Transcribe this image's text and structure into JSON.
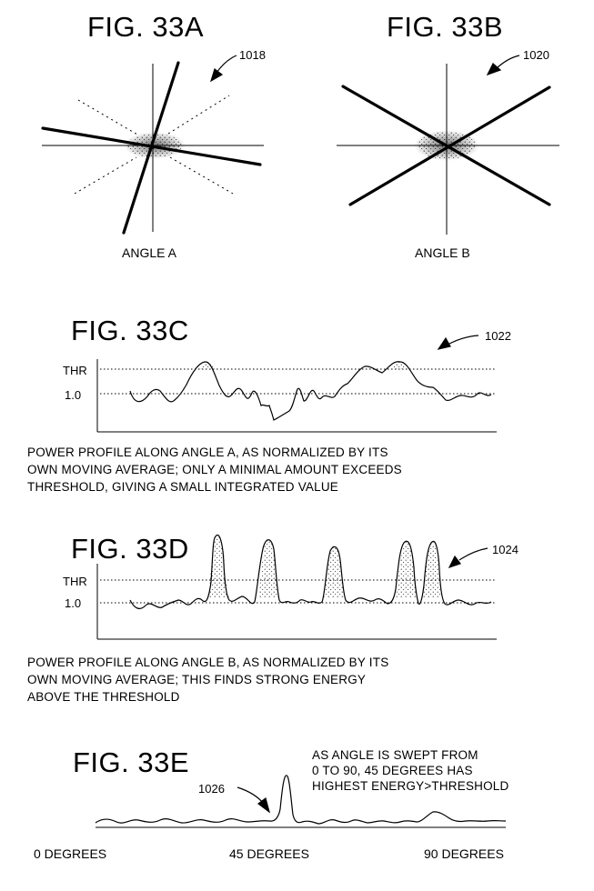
{
  "fig_a": {
    "title": "FIG. 33A",
    "ref": "1018",
    "label": "ANGLE A"
  },
  "fig_b": {
    "title": "FIG. 33B",
    "ref": "1020",
    "label": "ANGLE B"
  },
  "fig_c": {
    "title": "FIG. 33C",
    "ref": "1022",
    "thr_label": "THR",
    "one_label": "1.0",
    "caption": [
      "POWER PROFILE ALONG ANGLE A, AS NORMALIZED BY ITS",
      "OWN MOVING AVERAGE; ONLY A MINIMAL AMOUNT EXCEEDS",
      "THRESHOLD, GIVING A SMALL INTEGRATED VALUE"
    ]
  },
  "fig_d": {
    "title": "FIG. 33D",
    "ref": "1024",
    "thr_label": "THR",
    "one_label": "1.0",
    "caption": [
      "POWER PROFILE ALONG ANGLE B, AS NORMALIZED BY ITS",
      "OWN MOVING AVERAGE; THIS FINDS STRONG ENERGY",
      "ABOVE THE THRESHOLD"
    ]
  },
  "fig_e": {
    "title": "FIG. 33E",
    "ref": "1026",
    "note": [
      "AS ANGLE IS SWEPT FROM",
      "0 TO 90, 45 DEGREES HAS",
      "HIGHEST ENERGY>THRESHOLD"
    ],
    "x_labels": [
      "0 DEGREES",
      "45 DEGREES",
      "90 DEGREES"
    ]
  }
}
